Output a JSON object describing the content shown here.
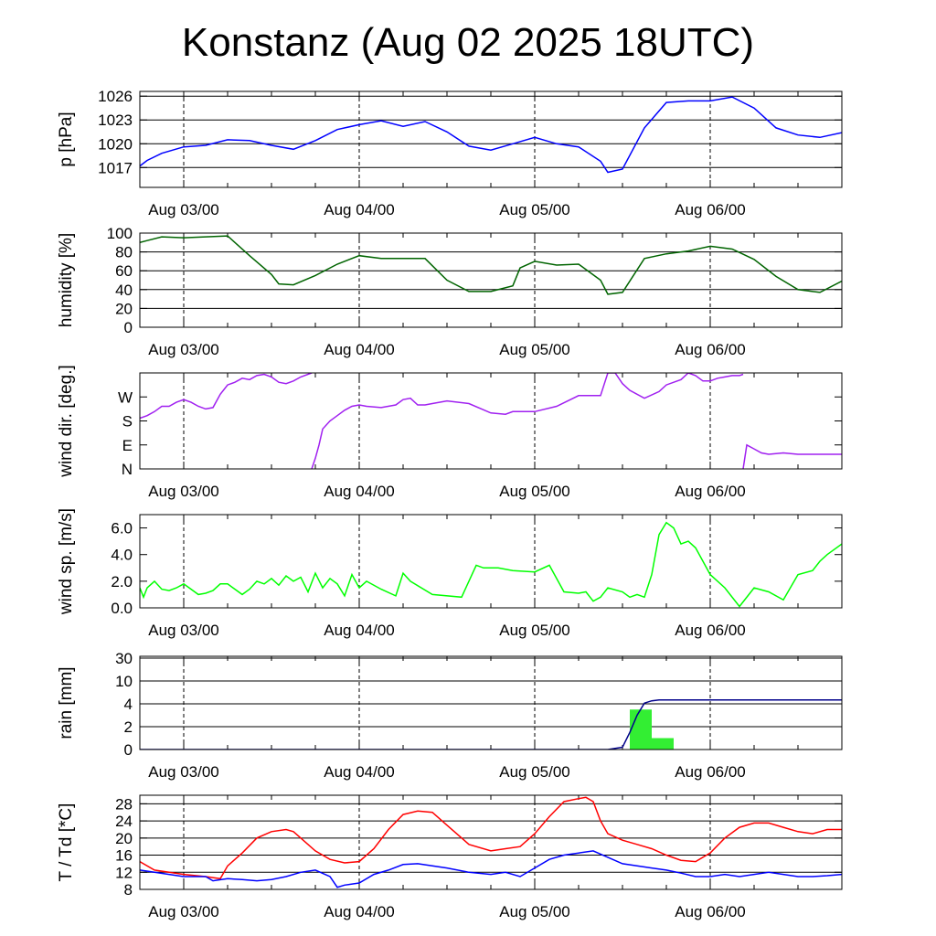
{
  "title": "Konstanz (Aug 02 2025 18UTC)",
  "x_tick_labels": [
    "Aug 03/00",
    "Aug 04/00",
    "Aug 05/00",
    "Aug 06/00"
  ],
  "colors": {
    "pressure": "#0000ff",
    "humidity": "#006400",
    "wind_dir": "#a020f0",
    "wind_speed": "#00ff00",
    "rain_bar": "#33ee33",
    "rain_cum": "#00008b",
    "temperature": "#ff0000",
    "dewpoint": "#0000ff"
  },
  "chart_data": [
    {
      "type": "line",
      "name": "pressure",
      "ylabel": "p [hPa]",
      "ylim": [
        1014.5,
        1026.6
      ],
      "yticks": [
        1017,
        1020,
        1023,
        1026
      ],
      "ytick_labels": [
        "1017",
        "1020",
        "1023",
        "1026"
      ],
      "grid": true,
      "x_unit": "hours since Aug 02 18UTC",
      "series": [
        {
          "x": [
            0,
            1,
            3,
            6,
            9,
            12,
            15,
            18,
            21,
            24,
            27,
            30,
            33,
            36,
            39,
            42,
            45,
            48,
            51,
            54,
            57,
            60,
            63,
            64,
            66,
            69,
            72,
            75,
            78,
            81,
            84,
            87,
            90,
            93,
            96
          ],
          "y": [
            1017.2,
            1017.9,
            1018.8,
            1019.6,
            1019.8,
            1020.5,
            1020.4,
            1019.8,
            1019.3,
            1020.4,
            1021.8,
            1022.4,
            1022.9,
            1022.2,
            1022.8,
            1021.5,
            1019.7,
            1019.2,
            1020.0,
            1020.8,
            1020.0,
            1019.6,
            1017.8,
            1016.4,
            1016.8,
            1022.0,
            1025.2,
            1025.4,
            1025.4,
            1025.9,
            1024.5,
            1022.0,
            1021.1,
            1020.8,
            1021.4
          ]
        }
      ]
    },
    {
      "type": "line",
      "name": "humidity",
      "ylabel": "humidity [%]",
      "ylim": [
        0,
        100
      ],
      "yticks": [
        0,
        20,
        40,
        60,
        80,
        100
      ],
      "ytick_labels": [
        "0",
        "20",
        "40",
        "60",
        "80",
        "100"
      ],
      "grid": true,
      "series": [
        {
          "x": [
            0,
            1,
            3,
            6,
            9,
            12,
            15,
            18,
            19,
            21,
            24,
            27,
            30,
            33,
            36,
            39,
            42,
            45,
            48,
            51,
            52,
            54,
            57,
            60,
            63,
            64,
            66,
            69,
            72,
            75,
            78,
            81,
            84,
            87,
            90,
            93,
            96
          ],
          "y": [
            90,
            92,
            96,
            95,
            96,
            97,
            76,
            56,
            46,
            45,
            55,
            67,
            76,
            73,
            73,
            73,
            50,
            38,
            38,
            44,
            63,
            70,
            66,
            67,
            50,
            35,
            37,
            73,
            78,
            81,
            86,
            83,
            72,
            54,
            40,
            37,
            49
          ]
        }
      ]
    },
    {
      "type": "line",
      "name": "wind direction",
      "ylabel": "wind dir. [deg.]",
      "ylim": [
        0,
        360
      ],
      "yticks": [
        0,
        90,
        180,
        270
      ],
      "ytick_labels": [
        "N",
        "E",
        "S",
        "W"
      ],
      "grid": false,
      "series": [
        {
          "segments": [
            {
              "x": [
                0,
                1,
                2,
                3,
                4,
                5,
                6,
                7,
                8,
                9,
                10,
                11,
                12,
                13,
                14,
                15,
                16,
                17,
                18,
                19,
                20,
                21,
                22,
                23.5
              ],
              "y": [
                190,
                200,
                215,
                235,
                235,
                250,
                260,
                250,
                235,
                225,
                230,
                280,
                315,
                325,
                340,
                335,
                350,
                355,
                345,
                325,
                320,
                330,
                345,
                360
              ]
            },
            {
              "x": [
                23.5,
                24,
                24.5,
                25,
                26,
                27,
                28,
                29,
                30,
                31,
                33,
                35,
                36,
                37,
                38,
                39,
                40,
                42,
                45,
                48,
                50,
                51,
                54,
                57,
                60,
                63,
                64,
                65,
                66,
                67,
                69,
                71,
                72,
                74,
                75,
                76,
                77,
                78,
                79,
                80,
                81,
                82,
                82.5
              ],
              "y": [
                0,
                40,
                90,
                150,
                180,
                200,
                220,
                235,
                240,
                235,
                230,
                240,
                260,
                265,
                240,
                240,
                245,
                255,
                245,
                210,
                205,
                215,
                215,
                235,
                275,
                275,
                360,
                360,
                320,
                295,
                265,
                290,
                315,
                335,
                360,
                350,
                330,
                330,
                340,
                345,
                350,
                350,
                355
              ]
            },
            {
              "x": [
                82.5,
                83,
                84,
                85,
                86,
                88,
                90,
                93,
                96
              ],
              "y": [
                0,
                90,
                75,
                60,
                55,
                60,
                55,
                55,
                55
              ]
            }
          ]
        }
      ]
    },
    {
      "type": "line",
      "name": "wind speed",
      "ylabel": "wind sp. [m/s]",
      "ylim": [
        0,
        7
      ],
      "yticks": [
        0,
        2,
        4,
        6
      ],
      "ytick_labels": [
        "0.0",
        "2.0",
        "4.0",
        "6.0"
      ],
      "grid": false,
      "series": [
        {
          "x": [
            0,
            0.5,
            1,
            2,
            3,
            4,
            5,
            6,
            8,
            9,
            10,
            11,
            12,
            14,
            15,
            16,
            17,
            18,
            19,
            20,
            21,
            22,
            23,
            24,
            25,
            26,
            27,
            28,
            29,
            30,
            31,
            33,
            35,
            36,
            37,
            40,
            44,
            46,
            47,
            48,
            49,
            51,
            54,
            56,
            58,
            60,
            61,
            62,
            63,
            64,
            66,
            67,
            68,
            69,
            70,
            71,
            72,
            73,
            74,
            75,
            76,
            78,
            80,
            82,
            84,
            86,
            88,
            90,
            92,
            93,
            94,
            96
          ],
          "y": [
            1.5,
            0.8,
            1.5,
            2.0,
            1.4,
            1.3,
            1.5,
            1.8,
            1.0,
            1.1,
            1.3,
            1.8,
            1.8,
            1.0,
            1.4,
            2.0,
            1.8,
            2.2,
            1.7,
            2.4,
            2.0,
            2.3,
            1.2,
            2.6,
            1.5,
            2.2,
            1.8,
            0.9,
            2.5,
            1.5,
            2.0,
            1.4,
            0.9,
            2.6,
            2.0,
            1.0,
            0.8,
            3.2,
            3.0,
            3.0,
            3.0,
            2.8,
            2.7,
            3.2,
            1.2,
            1.1,
            1.2,
            0.5,
            0.8,
            1.5,
            1.2,
            0.8,
            1.0,
            0.8,
            2.5,
            5.5,
            6.4,
            6.0,
            4.8,
            5.0,
            4.5,
            2.5,
            1.5,
            0.1,
            1.5,
            1.2,
            0.6,
            2.5,
            2.8,
            3.5,
            4.0,
            4.8
          ]
        }
      ]
    },
    {
      "type": "bar",
      "name": "rain",
      "ylabel": "rain [mm]",
      "ylim": [
        0,
        30
      ],
      "yticks": [
        0,
        2,
        4,
        10,
        30
      ],
      "ytick_labels": [
        "0",
        "2",
        "4",
        "10",
        "30"
      ],
      "grid": true,
      "bars": [
        {
          "x_start": 67,
          "x_end": 70,
          "value": 3.5
        },
        {
          "x_start": 70,
          "x_end": 73,
          "value": 1.0
        }
      ],
      "cumulative": {
        "x": [
          0,
          64,
          66,
          67,
          68,
          69,
          70,
          71,
          72,
          96
        ],
        "y": [
          0,
          0,
          0.2,
          1.5,
          3.0,
          4.2,
          4.8,
          5.0,
          5.0,
          5.0
        ]
      }
    },
    {
      "type": "line",
      "name": "temperature / dewpoint",
      "ylabel": "T / Td [*C]",
      "ylim": [
        8,
        30
      ],
      "yticks": [
        8,
        12,
        16,
        20,
        24,
        28
      ],
      "ytick_labels": [
        "8",
        "12",
        "16",
        "20",
        "24",
        "28"
      ],
      "grid": true,
      "series": [
        {
          "x": [
            0,
            2,
            4,
            6,
            9,
            11,
            12,
            14,
            16,
            18,
            20,
            21,
            22,
            24,
            26,
            28,
            30,
            32,
            34,
            36,
            38,
            40,
            42,
            45,
            48,
            50,
            52,
            54,
            56,
            58,
            60,
            61,
            62,
            63,
            64,
            66,
            68,
            70,
            72,
            74,
            76,
            78,
            80,
            82,
            84,
            86,
            88,
            90,
            92,
            94,
            96
          ],
          "y": [
            14.5,
            12.5,
            12.0,
            11.5,
            11.0,
            10.5,
            13.5,
            16.5,
            20.0,
            21.5,
            22.0,
            21.5,
            20.0,
            17.0,
            15.0,
            14.2,
            14.5,
            17.5,
            22.0,
            25.5,
            26.3,
            26.0,
            23.0,
            18.5,
            17.0,
            17.5,
            18.0,
            21.0,
            25.0,
            28.5,
            29.2,
            29.5,
            28.5,
            24.0,
            21.0,
            19.5,
            18.5,
            17.5,
            16.0,
            14.8,
            14.5,
            16.5,
            20.0,
            22.5,
            23.5,
            23.5,
            22.5,
            21.5,
            21.0,
            22.0,
            22.0
          ]
        },
        {
          "x": [
            0,
            2,
            4,
            6,
            9,
            10,
            12,
            14,
            16,
            18,
            20,
            22,
            24,
            26,
            27,
            28,
            30,
            32,
            34,
            36,
            38,
            40,
            42,
            45,
            48,
            50,
            52,
            54,
            56,
            58,
            60,
            62,
            64,
            66,
            68,
            70,
            72,
            74,
            76,
            78,
            80,
            82,
            84,
            86,
            88,
            90,
            92,
            94,
            96
          ],
          "y": [
            12.5,
            12.0,
            11.5,
            11.0,
            11.0,
            10.0,
            10.5,
            10.3,
            10.0,
            10.3,
            11.0,
            12.0,
            12.5,
            11.0,
            8.5,
            9.0,
            9.5,
            11.5,
            12.5,
            13.8,
            14.0,
            13.5,
            13.0,
            12.0,
            11.5,
            12.0,
            11.0,
            13.0,
            15.0,
            16.0,
            16.5,
            17.0,
            15.5,
            14.0,
            13.5,
            13.0,
            12.5,
            11.8,
            11.0,
            11.0,
            11.5,
            11.0,
            11.5,
            12.0,
            11.5,
            11.0,
            11.0,
            11.2,
            11.5
          ]
        }
      ]
    }
  ]
}
